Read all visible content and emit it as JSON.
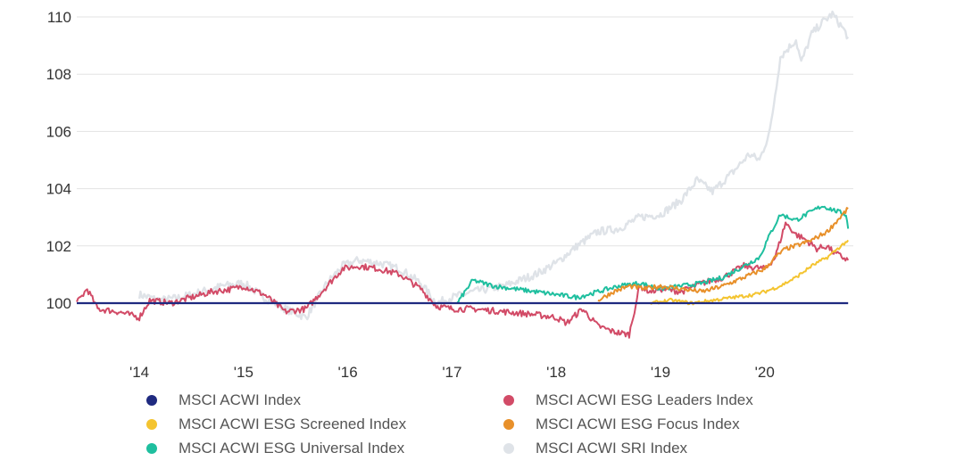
{
  "chart_data": {
    "type": "line",
    "title": "",
    "xlabel": "",
    "ylabel": "",
    "ylim": [
      98.5,
      110.2
    ],
    "xlim": [
      2013.4,
      2020.85
    ],
    "y_ticks": [
      "100",
      "102",
      "104",
      "106",
      "108",
      "110"
    ],
    "x_ticks": [
      "'14",
      "'15",
      "'16",
      "'17",
      "'18",
      "'19",
      "'20"
    ],
    "grid": true,
    "legend_position": "bottom",
    "series": [
      {
        "name": "MSCI ACWI Index",
        "color": "#1f2a80",
        "x": [
          2013.4,
          2020.8
        ],
        "y": [
          100,
          100
        ]
      },
      {
        "name": "MSCI ACWI ESG Leaders Index",
        "color": "#d24b67",
        "x": [
          2013.4,
          2013.5,
          2013.6,
          2013.8,
          2014.0,
          2014.1,
          2014.3,
          2014.5,
          2014.7,
          2014.9,
          2015.0,
          2015.2,
          2015.4,
          2015.6,
          2015.8,
          2015.95,
          2016.1,
          2016.3,
          2016.5,
          2016.7,
          2016.85,
          2017.0,
          2017.2,
          2017.5,
          2017.8,
          2018.0,
          2018.1,
          2018.25,
          2018.4,
          2018.55,
          2018.7,
          2018.8,
          2018.9,
          2019.0,
          2019.2,
          2019.4,
          2019.6,
          2019.8,
          2020.0,
          2020.1,
          2020.2,
          2020.3,
          2020.4,
          2020.5,
          2020.6,
          2020.65,
          2020.7,
          2020.8
        ],
        "y": [
          100.0,
          100.5,
          99.8,
          99.7,
          99.5,
          100.1,
          100.0,
          100.2,
          100.4,
          100.5,
          100.6,
          100.3,
          99.7,
          99.8,
          100.6,
          101.2,
          101.3,
          101.2,
          101.0,
          100.5,
          99.9,
          99.8,
          99.8,
          99.7,
          99.6,
          99.5,
          99.3,
          99.8,
          99.2,
          99.0,
          98.9,
          100.6,
          100.4,
          100.5,
          100.4,
          100.7,
          100.9,
          101.3,
          101.2,
          101.6,
          102.8,
          102.4,
          102.2,
          101.9,
          102.0,
          101.8,
          101.7,
          101.5
        ]
      },
      {
        "name": "MSCI ACWI ESG Screened Index",
        "color": "#f4c430",
        "x": [
          2018.9,
          2019.1,
          2019.3,
          2019.5,
          2019.7,
          2019.9,
          2020.0,
          2020.15,
          2020.3,
          2020.45,
          2020.6,
          2020.7,
          2020.8
        ],
        "y": [
          100.0,
          100.1,
          100.0,
          100.1,
          100.2,
          100.3,
          100.4,
          100.6,
          100.9,
          101.3,
          101.6,
          101.9,
          102.2
        ]
      },
      {
        "name": "MSCI ACWI ESG Focus Index",
        "color": "#e8902a",
        "x": [
          2018.4,
          2018.55,
          2018.7,
          2018.85,
          2019.0,
          2019.2,
          2019.4,
          2019.6,
          2019.8,
          2020.0,
          2020.1,
          2020.2,
          2020.3,
          2020.45,
          2020.6,
          2020.7,
          2020.8
        ],
        "y": [
          100.1,
          100.4,
          100.6,
          100.5,
          100.6,
          100.5,
          100.4,
          100.6,
          100.9,
          101.2,
          101.6,
          101.9,
          102.0,
          102.2,
          102.5,
          102.9,
          103.3
        ]
      },
      {
        "name": "MSCI ACWI ESG Universal Index",
        "color": "#1fbf9f",
        "x": [
          2017.05,
          2017.2,
          2017.4,
          2017.6,
          2017.8,
          2018.0,
          2018.2,
          2018.4,
          2018.6,
          2018.8,
          2019.0,
          2019.2,
          2019.4,
          2019.6,
          2019.8,
          2019.95,
          2020.05,
          2020.15,
          2020.3,
          2020.45,
          2020.55,
          2020.7,
          2020.78,
          2020.8
        ],
        "y": [
          100.0,
          100.8,
          100.6,
          100.5,
          100.4,
          100.3,
          100.2,
          100.4,
          100.6,
          100.7,
          100.5,
          100.6,
          100.7,
          100.9,
          101.3,
          101.6,
          102.4,
          103.1,
          102.9,
          103.2,
          103.4,
          103.2,
          103.1,
          102.6
        ]
      },
      {
        "name": "MSCI ACWI SRI Index",
        "color": "#dfe3e8",
        "x": [
          2014.0,
          2014.2,
          2014.4,
          2014.6,
          2014.8,
          2015.0,
          2015.2,
          2015.4,
          2015.6,
          2015.8,
          2015.95,
          2016.1,
          2016.3,
          2016.5,
          2016.7,
          2016.85,
          2017.0,
          2017.2,
          2017.5,
          2017.8,
          2018.0,
          2018.2,
          2018.4,
          2018.6,
          2018.8,
          2019.0,
          2019.2,
          2019.35,
          2019.5,
          2019.7,
          2019.85,
          2019.95,
          2020.05,
          2020.15,
          2020.3,
          2020.35,
          2020.45,
          2020.55,
          2020.65,
          2020.75,
          2020.8
        ],
        "y": [
          100.3,
          100.1,
          100.2,
          100.4,
          100.6,
          100.7,
          100.2,
          99.8,
          99.5,
          100.7,
          101.3,
          101.5,
          101.4,
          101.2,
          100.7,
          100.0,
          100.2,
          100.4,
          100.6,
          101.0,
          101.4,
          102.0,
          102.5,
          102.6,
          103.0,
          103.1,
          103.6,
          104.3,
          103.9,
          104.6,
          105.2,
          105.0,
          106.0,
          108.6,
          109.2,
          108.4,
          109.4,
          109.8,
          110.1,
          109.6,
          109.3
        ]
      }
    ]
  }
}
